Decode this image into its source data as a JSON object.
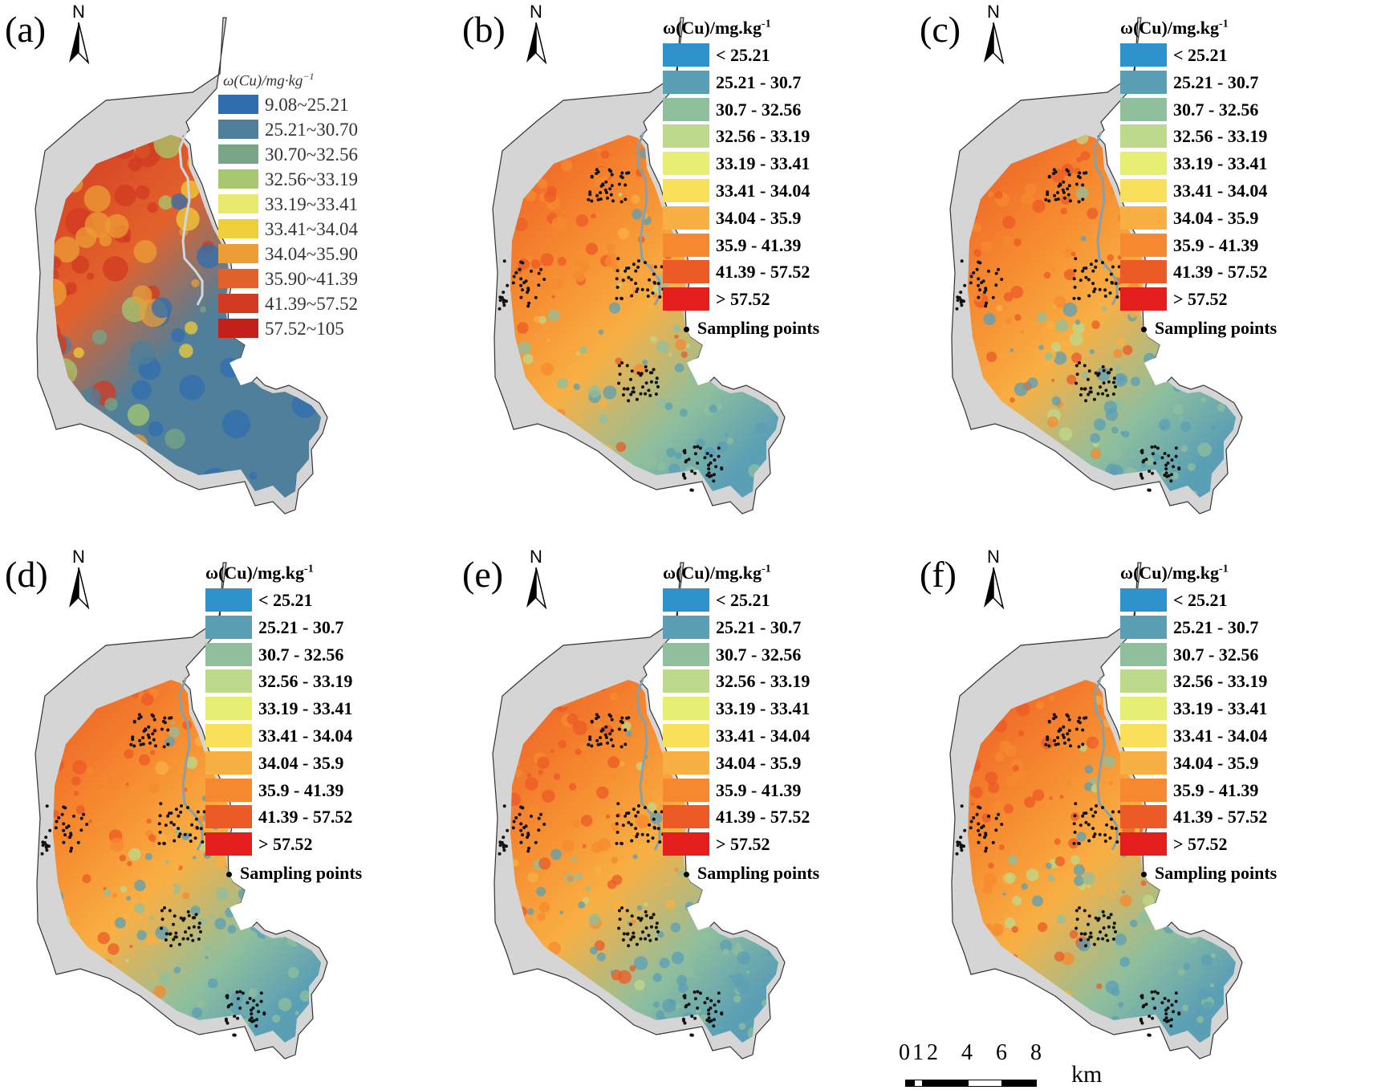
{
  "panels": [
    {
      "id": "a",
      "label": "(a)",
      "north": "N",
      "legend_title": "ω(Cu)/mg·kg",
      "legend_sup": "−1",
      "has_sampling": false,
      "classes": [
        {
          "label": "9.08~25.21",
          "color": "#2f6db0"
        },
        {
          "label": "25.21~30.70",
          "color": "#4f7f9a"
        },
        {
          "label": "30.70~32.56",
          "color": "#77a585"
        },
        {
          "label": "32.56~33.19",
          "color": "#a6c86e"
        },
        {
          "label": "33.19~33.41",
          "color": "#e7ea6d"
        },
        {
          "label": "33.41~34.04",
          "color": "#efce3a"
        },
        {
          "label": "34.04~35.90",
          "color": "#ec9d35"
        },
        {
          "label": "35.90~41.39",
          "color": "#e3622c"
        },
        {
          "label": "41.39~57.52",
          "color": "#d23a22"
        },
        {
          "label": "57.52~105",
          "color": "#c3201c"
        }
      ]
    },
    {
      "id": "b",
      "label": "(b)",
      "north": "N",
      "legend_title": "ω(Cu)/mg.kg",
      "legend_sup": "-1",
      "has_sampling": true,
      "sampling_label": "Sampling points"
    },
    {
      "id": "c",
      "label": "(c)",
      "north": "N",
      "legend_title": "ω(Cu)/mg.kg",
      "legend_sup": "-1",
      "has_sampling": true,
      "sampling_label": "Sampling points"
    },
    {
      "id": "d",
      "label": "(d)",
      "north": "N",
      "legend_title": "ω(Cu)/mg.kg",
      "legend_sup": "-1",
      "has_sampling": true,
      "sampling_label": "Sampling points"
    },
    {
      "id": "e",
      "label": "(e)",
      "north": "N",
      "legend_title": "ω(Cu)/mg.kg",
      "legend_sup": "-1",
      "has_sampling": true,
      "sampling_label": "Sampling points"
    },
    {
      "id": "f",
      "label": "(f)",
      "north": "N",
      "legend_title": "ω(Cu)/mg.kg",
      "legend_sup": "-1",
      "has_sampling": true,
      "sampling_label": "Sampling points"
    }
  ],
  "legend_classes": [
    {
      "label": "< 25.21",
      "color": "#2e93cd"
    },
    {
      "label": "25.21 - 30.7",
      "color": "#5b9fb5"
    },
    {
      "label": "30.7 - 32.56",
      "color": "#8fbf9d"
    },
    {
      "label": "32.56 - 33.19",
      "color": "#bdd98b"
    },
    {
      "label": "33.19 - 33.41",
      "color": "#e6ef72"
    },
    {
      "label": "33.41 - 34.04",
      "color": "#f8e05a"
    },
    {
      "label": "34.04 - 35.9",
      "color": "#f8b044"
    },
    {
      "label": "35.9 - 41.39",
      "color": "#f6892f"
    },
    {
      "label": "41.39 - 57.52",
      "color": "#ec5a25"
    },
    {
      "label": "> 57.52",
      "color": "#e41d1d"
    }
  ],
  "boundary_fill": "#d5d5d5",
  "scale_bar": {
    "ticks": [
      "0",
      "1",
      "2",
      "4",
      "6",
      "8"
    ],
    "unit": "km"
  }
}
